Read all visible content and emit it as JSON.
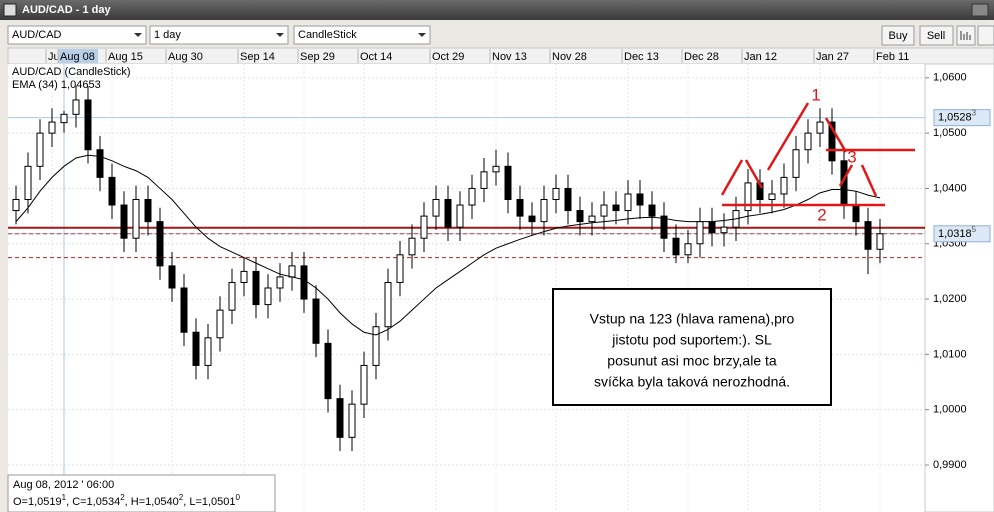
{
  "window": {
    "title": "AUD/CAD - 1 day"
  },
  "toolbar": {
    "symbol": "AUD/CAD",
    "period": "1 day",
    "chart_style": "CandleStick",
    "buy": "Buy",
    "sell": "Sell"
  },
  "chart_data": {
    "type": "candlestick",
    "name": "AUD/CAD (CandleStick)",
    "categories": [
      null,
      null,
      null,
      "Ju",
      "Aug 08",
      null,
      null,
      null,
      "Aug 15",
      null,
      null,
      null,
      null,
      "Aug 30",
      null,
      null,
      null,
      null,
      null,
      "Sep 14",
      null,
      null,
      null,
      null,
      "Sep 29",
      null,
      null,
      null,
      null,
      "Oct 14",
      null,
      null,
      null,
      null,
      null,
      "Oct 29",
      null,
      null,
      null,
      null,
      "Nov 13",
      null,
      null,
      null,
      null,
      "Nov 28",
      null,
      null,
      null,
      null,
      null,
      "Dec 13",
      null,
      null,
      null,
      null,
      "Dec 28",
      null,
      null,
      null,
      null,
      "Jan 12",
      null,
      null,
      null,
      null,
      null,
      "Jan 27",
      null,
      null,
      null,
      null,
      "Feb 11"
    ],
    "crosshair_index": 4,
    "candles": [
      [
        1.036,
        1.0405,
        1.0335,
        1.038
      ],
      [
        1.038,
        1.0465,
        1.0355,
        1.044
      ],
      [
        1.044,
        1.0525,
        1.0415,
        1.05
      ],
      [
        1.05,
        1.0545,
        1.0475,
        1.052
      ],
      [
        1.0519,
        1.054,
        1.0501,
        1.0534
      ],
      [
        1.0534,
        1.0585,
        1.051,
        1.056
      ],
      [
        1.056,
        1.0585,
        1.0445,
        1.047
      ],
      [
        1.047,
        1.0495,
        1.0395,
        1.042
      ],
      [
        1.042,
        1.0445,
        1.0345,
        1.037
      ],
      [
        1.037,
        1.0395,
        1.0285,
        1.031
      ],
      [
        1.031,
        1.0405,
        1.0285,
        1.038
      ],
      [
        1.038,
        1.0405,
        1.0315,
        1.034
      ],
      [
        1.034,
        1.0365,
        1.0235,
        1.026
      ],
      [
        1.026,
        1.0285,
        1.0195,
        1.022
      ],
      [
        1.022,
        1.0245,
        1.0115,
        1.014
      ],
      [
        1.014,
        1.0165,
        1.0055,
        1.008
      ],
      [
        1.008,
        1.0155,
        1.0055,
        1.013
      ],
      [
        1.013,
        1.0205,
        1.0105,
        1.018
      ],
      [
        1.018,
        1.0255,
        1.0155,
        1.023
      ],
      [
        1.023,
        1.0275,
        1.0205,
        1.025
      ],
      [
        1.025,
        1.0275,
        1.0165,
        1.019
      ],
      [
        1.019,
        1.0245,
        1.0165,
        1.022
      ],
      [
        1.022,
        1.0265,
        1.0195,
        1.024
      ],
      [
        1.024,
        1.0285,
        1.0215,
        1.026
      ],
      [
        1.026,
        1.0285,
        1.0175,
        1.02
      ],
      [
        1.02,
        1.0225,
        1.0095,
        1.012
      ],
      [
        1.012,
        1.0145,
        0.9995,
        1.002
      ],
      [
        1.002,
        1.0045,
        0.9925,
        0.995
      ],
      [
        0.995,
        1.0035,
        0.9925,
        1.001
      ],
      [
        1.001,
        1.0105,
        0.9985,
        1.008
      ],
      [
        1.008,
        1.0175,
        1.0055,
        1.015
      ],
      [
        1.015,
        1.0255,
        1.0125,
        1.023
      ],
      [
        1.023,
        1.0305,
        1.0205,
        1.028
      ],
      [
        1.028,
        1.0335,
        1.0255,
        1.031
      ],
      [
        1.031,
        1.0375,
        1.0285,
        1.035
      ],
      [
        1.035,
        1.0405,
        1.0325,
        1.038
      ],
      [
        1.038,
        1.0405,
        1.0305,
        1.033
      ],
      [
        1.033,
        1.0395,
        1.0305,
        1.037
      ],
      [
        1.037,
        1.0425,
        1.0345,
        1.04
      ],
      [
        1.04,
        1.0455,
        1.0375,
        1.043
      ],
      [
        1.043,
        1.047,
        1.0405,
        1.044
      ],
      [
        1.044,
        1.0465,
        1.0355,
        1.038
      ],
      [
        1.038,
        1.0405,
        1.0325,
        1.035
      ],
      [
        1.035,
        1.0375,
        1.0315,
        1.034
      ],
      [
        1.034,
        1.0405,
        1.0315,
        1.038
      ],
      [
        1.038,
        1.0425,
        1.0355,
        1.04
      ],
      [
        1.04,
        1.0425,
        1.0335,
        1.036
      ],
      [
        1.036,
        1.0385,
        1.0315,
        1.034
      ],
      [
        1.034,
        1.0375,
        1.0315,
        1.035
      ],
      [
        1.035,
        1.0395,
        1.0325,
        1.037
      ],
      [
        1.037,
        1.0395,
        1.0335,
        1.036
      ],
      [
        1.036,
        1.0415,
        1.0335,
        1.039
      ],
      [
        1.039,
        1.0415,
        1.0345,
        1.037
      ],
      [
        1.037,
        1.0395,
        1.0325,
        1.035
      ],
      [
        1.035,
        1.0375,
        1.0285,
        1.031
      ],
      [
        1.031,
        1.0335,
        1.0265,
        1.028
      ],
      [
        1.028,
        1.0325,
        1.0265,
        1.03
      ],
      [
        1.03,
        1.0365,
        1.0275,
        1.034
      ],
      [
        1.034,
        1.0365,
        1.0295,
        1.032
      ],
      [
        1.032,
        1.0355,
        1.0295,
        1.033
      ],
      [
        1.033,
        1.0385,
        1.0305,
        1.036
      ],
      [
        1.036,
        1.0435,
        1.0335,
        1.041
      ],
      [
        1.041,
        1.0435,
        1.0355,
        1.038
      ],
      [
        1.038,
        1.0415,
        1.0355,
        1.039
      ],
      [
        1.039,
        1.0445,
        1.0365,
        1.042
      ],
      [
        1.042,
        1.0495,
        1.0395,
        1.047
      ],
      [
        1.047,
        1.0525,
        1.0445,
        1.05
      ],
      [
        1.05,
        1.0545,
        1.0475,
        1.052
      ],
      [
        1.052,
        1.0545,
        1.0425,
        1.045
      ],
      [
        1.045,
        1.0475,
        1.0345,
        1.037
      ],
      [
        1.037,
        1.0395,
        1.0315,
        1.034
      ],
      [
        1.034,
        1.0365,
        1.0245,
        1.029
      ],
      [
        1.029,
        1.0345,
        1.0265,
        1.0318
      ]
    ],
    "up_color": "#ffffff",
    "down_color": "#000000",
    "ema": {
      "name": "EMA (34)",
      "readout": "1,04653",
      "color": "#000000",
      "values": [
        1.034,
        1.0365,
        1.0395,
        1.042,
        1.044,
        1.0455,
        1.046,
        1.0458,
        1.045,
        1.044,
        1.0432,
        1.042,
        1.04,
        1.038,
        1.0355,
        1.033,
        1.031,
        1.0295,
        1.0285,
        1.0275,
        1.0265,
        1.0255,
        1.0245,
        1.024,
        1.0235,
        1.022,
        1.02,
        1.0175,
        1.0155,
        1.014,
        1.0135,
        1.0145,
        1.016,
        1.018,
        1.02,
        1.022,
        1.0235,
        1.025,
        1.0265,
        1.028,
        1.0292,
        1.03,
        1.0308,
        1.0315,
        1.0322,
        1.0328,
        1.0332,
        1.0335,
        1.0338,
        1.034,
        1.0342,
        1.0345,
        1.0347,
        1.0348,
        1.0346,
        1.0342,
        1.034,
        1.034,
        1.034,
        1.0342,
        1.0345,
        1.035,
        1.0353,
        1.0357,
        1.0362,
        1.037,
        1.038,
        1.0392,
        1.0398,
        1.0398,
        1.0395,
        1.0388,
        1.0383
      ]
    },
    "ylim": [
      0.9815,
      1.0625
    ],
    "yticks": [
      {
        "value": 0.99,
        "label": "0,9900"
      },
      {
        "value": 1.0,
        "label": "1,0000"
      },
      {
        "value": 1.01,
        "label": "1,0100"
      },
      {
        "value": 1.02,
        "label": "1,0200"
      },
      {
        "value": 1.03,
        "label": "1,0300"
      },
      {
        "value": 1.04,
        "label": "1,0400"
      },
      {
        "value": 1.05,
        "label": "1,0500"
      },
      {
        "value": 1.06,
        "label": "1,0600"
      }
    ],
    "grid": true,
    "levels": [
      {
        "value": 1.0329,
        "style": "solid",
        "color": "#a01818"
      },
      {
        "value": 1.0318,
        "style": "dashed",
        "color": "#c84040"
      },
      {
        "value": 1.0275,
        "style": "dashed",
        "color": "#c02020"
      }
    ],
    "price_markers": [
      {
        "value": 1.0528,
        "label": "1,0528",
        "sup": "3"
      },
      {
        "value": 1.0318,
        "label": "1,0318",
        "sup": "5"
      }
    ],
    "annotations": [
      "1",
      "2",
      "3"
    ],
    "note": [
      "Vstup na 123 (hlava ramena),pro",
      "jistotu pod suportem:). SL",
      "posunut asi moc brzy,ale ta",
      "svíčka byla taková nerozhodná."
    ],
    "info": {
      "date": "Aug 08, 2012 ' 06:00",
      "ohlc": [
        {
          "text": "O=1,0519",
          "sup": "1"
        },
        {
          "text": ", C=1,0534",
          "sup": "2"
        },
        {
          "text": ", H=1,0540",
          "sup": "2"
        },
        {
          "text": ", L=1,0501",
          "sup": "0"
        }
      ]
    }
  }
}
